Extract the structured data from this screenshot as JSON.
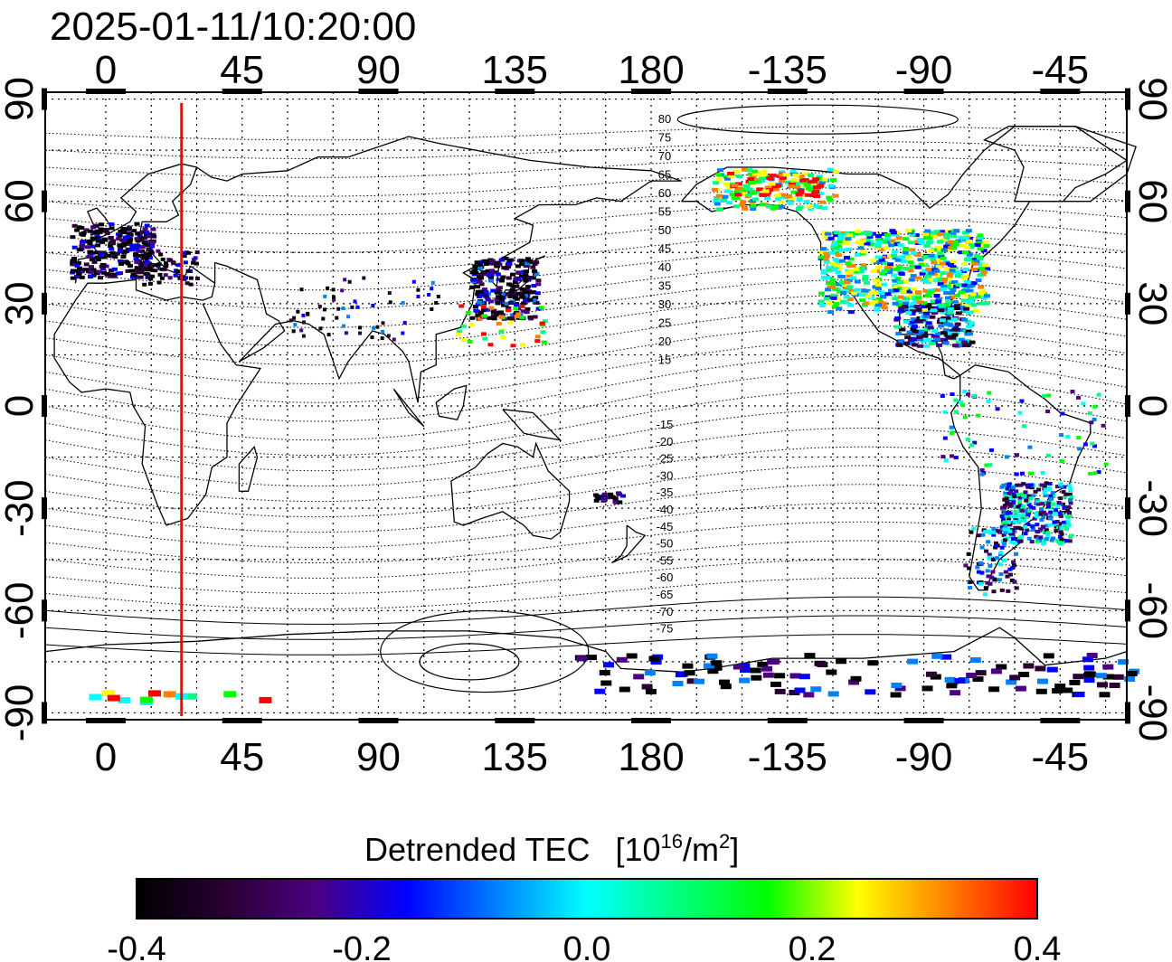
{
  "title": "2025-01-11/10:20:00",
  "map": {
    "top_lon_labels": [
      "0",
      "45",
      "90",
      "135",
      "180",
      "-135",
      "-90",
      "-45"
    ],
    "bottom_lon_labels": [
      "0",
      "45",
      "90",
      "135",
      "180",
      "-135",
      "-90",
      "-45"
    ],
    "left_lat_labels": [
      "90",
      "60",
      "30",
      "0",
      "-30",
      "-60",
      "-90"
    ],
    "right_lat_labels": [
      "90",
      "60",
      "30",
      "0",
      "-30",
      "-60",
      "-90"
    ],
    "lon_range": [
      -20,
      337
    ],
    "lat_range": [
      -92,
      92
    ],
    "terminator_lon": 25,
    "terminator_color": "#ff0000",
    "contour_labels_north": [
      "80",
      "75",
      "70",
      "65",
      "60",
      "55",
      "50",
      "45",
      "40",
      "35",
      "30",
      "25",
      "20",
      "15"
    ],
    "contour_labels_south": [
      "-15",
      "-20",
      "-25",
      "-30",
      "-35",
      "-40",
      "-45",
      "-50",
      "-55",
      "-60",
      "-65",
      "-70",
      "-75"
    ]
  },
  "colorbar": {
    "title": "Detrended TEC",
    "unit_base": "[10",
    "unit_exp": "16",
    "unit_mid": "/m",
    "unit_exp2": "2",
    "unit_end": "]",
    "tick_labels": [
      "-0.4",
      "-0.2",
      "0.0",
      "0.2",
      "0.4"
    ],
    "range": [
      -0.4,
      0.4
    ],
    "colors": [
      "#000000",
      "#2a0033",
      "#4b0082",
      "#0000ff",
      "#0080ff",
      "#00ffff",
      "#00ff80",
      "#00ff00",
      "#ffff00",
      "#ff8000",
      "#ff0000"
    ]
  }
}
